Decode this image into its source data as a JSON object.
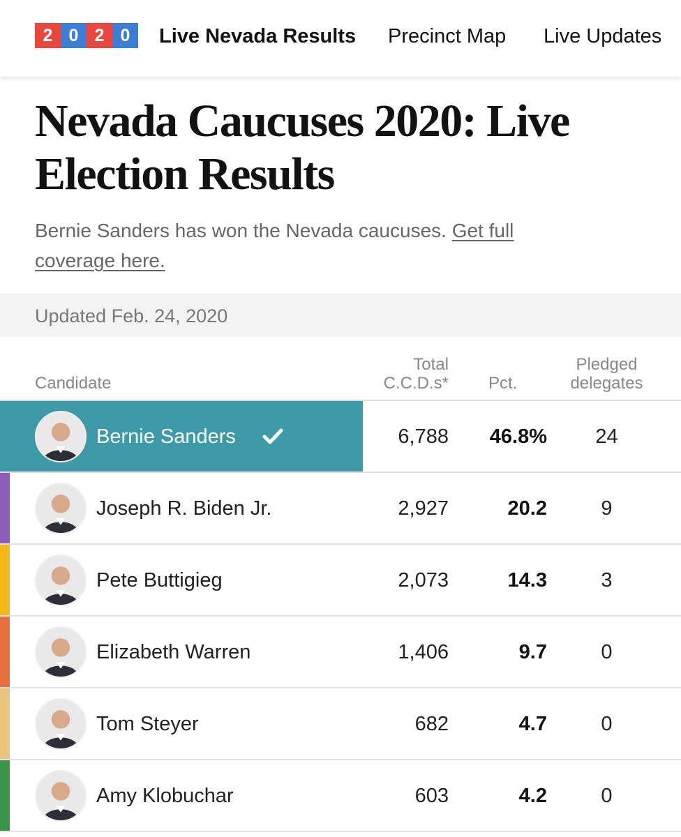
{
  "nav": {
    "logo_digits": [
      "2",
      "0",
      "2",
      "0"
    ],
    "logo_colors": [
      "#e8473d",
      "#3c7ed6",
      "#e8473d",
      "#3c7ed6"
    ],
    "links": [
      {
        "label": "Live Nevada Results",
        "active": true
      },
      {
        "label": "Precinct Map",
        "active": false
      },
      {
        "label": "Live Updates",
        "active": false
      }
    ]
  },
  "headline": {
    "line1": "Nevada Caucuses 2020: Live",
    "line2": "Election Results"
  },
  "summary": {
    "text": "Bernie Sanders has won the Nevada caucuses. ",
    "link_line1": "Get full",
    "link_line2": "coverage here."
  },
  "updated": "Updated Feb. 24, 2020",
  "table": {
    "headers": {
      "candidate": "Candidate",
      "total_line1": "Total",
      "total_line2": "C.C.D.s*",
      "pct": "Pct.",
      "delegates_line1": "Pledged",
      "delegates_line2": "delegates"
    },
    "rows": [
      {
        "name": "Bernie Sanders",
        "total": "6,788",
        "pct": "46.8%",
        "delegates": "24",
        "color": "#3f9aa8",
        "winner": true
      },
      {
        "name": "Joseph R. Biden Jr.",
        "total": "2,927",
        "pct": "20.2",
        "delegates": "9",
        "color": "#8c5db8",
        "winner": false
      },
      {
        "name": "Pete Buttigieg",
        "total": "2,073",
        "pct": "14.3",
        "delegates": "3",
        "color": "#f5b81b",
        "winner": false
      },
      {
        "name": "Elizabeth Warren",
        "total": "1,406",
        "pct": "9.7",
        "delegates": "0",
        "color": "#e8703e",
        "winner": false
      },
      {
        "name": "Tom Steyer",
        "total": "682",
        "pct": "4.7",
        "delegates": "0",
        "color": "#e8c57a",
        "winner": false
      },
      {
        "name": "Amy Klobuchar",
        "total": "603",
        "pct": "4.2",
        "delegates": "0",
        "color": "#3b9448",
        "winner": false
      }
    ]
  },
  "icons": {
    "winner_check": "checkmark-icon",
    "candidate_photo": "avatar-icon"
  }
}
